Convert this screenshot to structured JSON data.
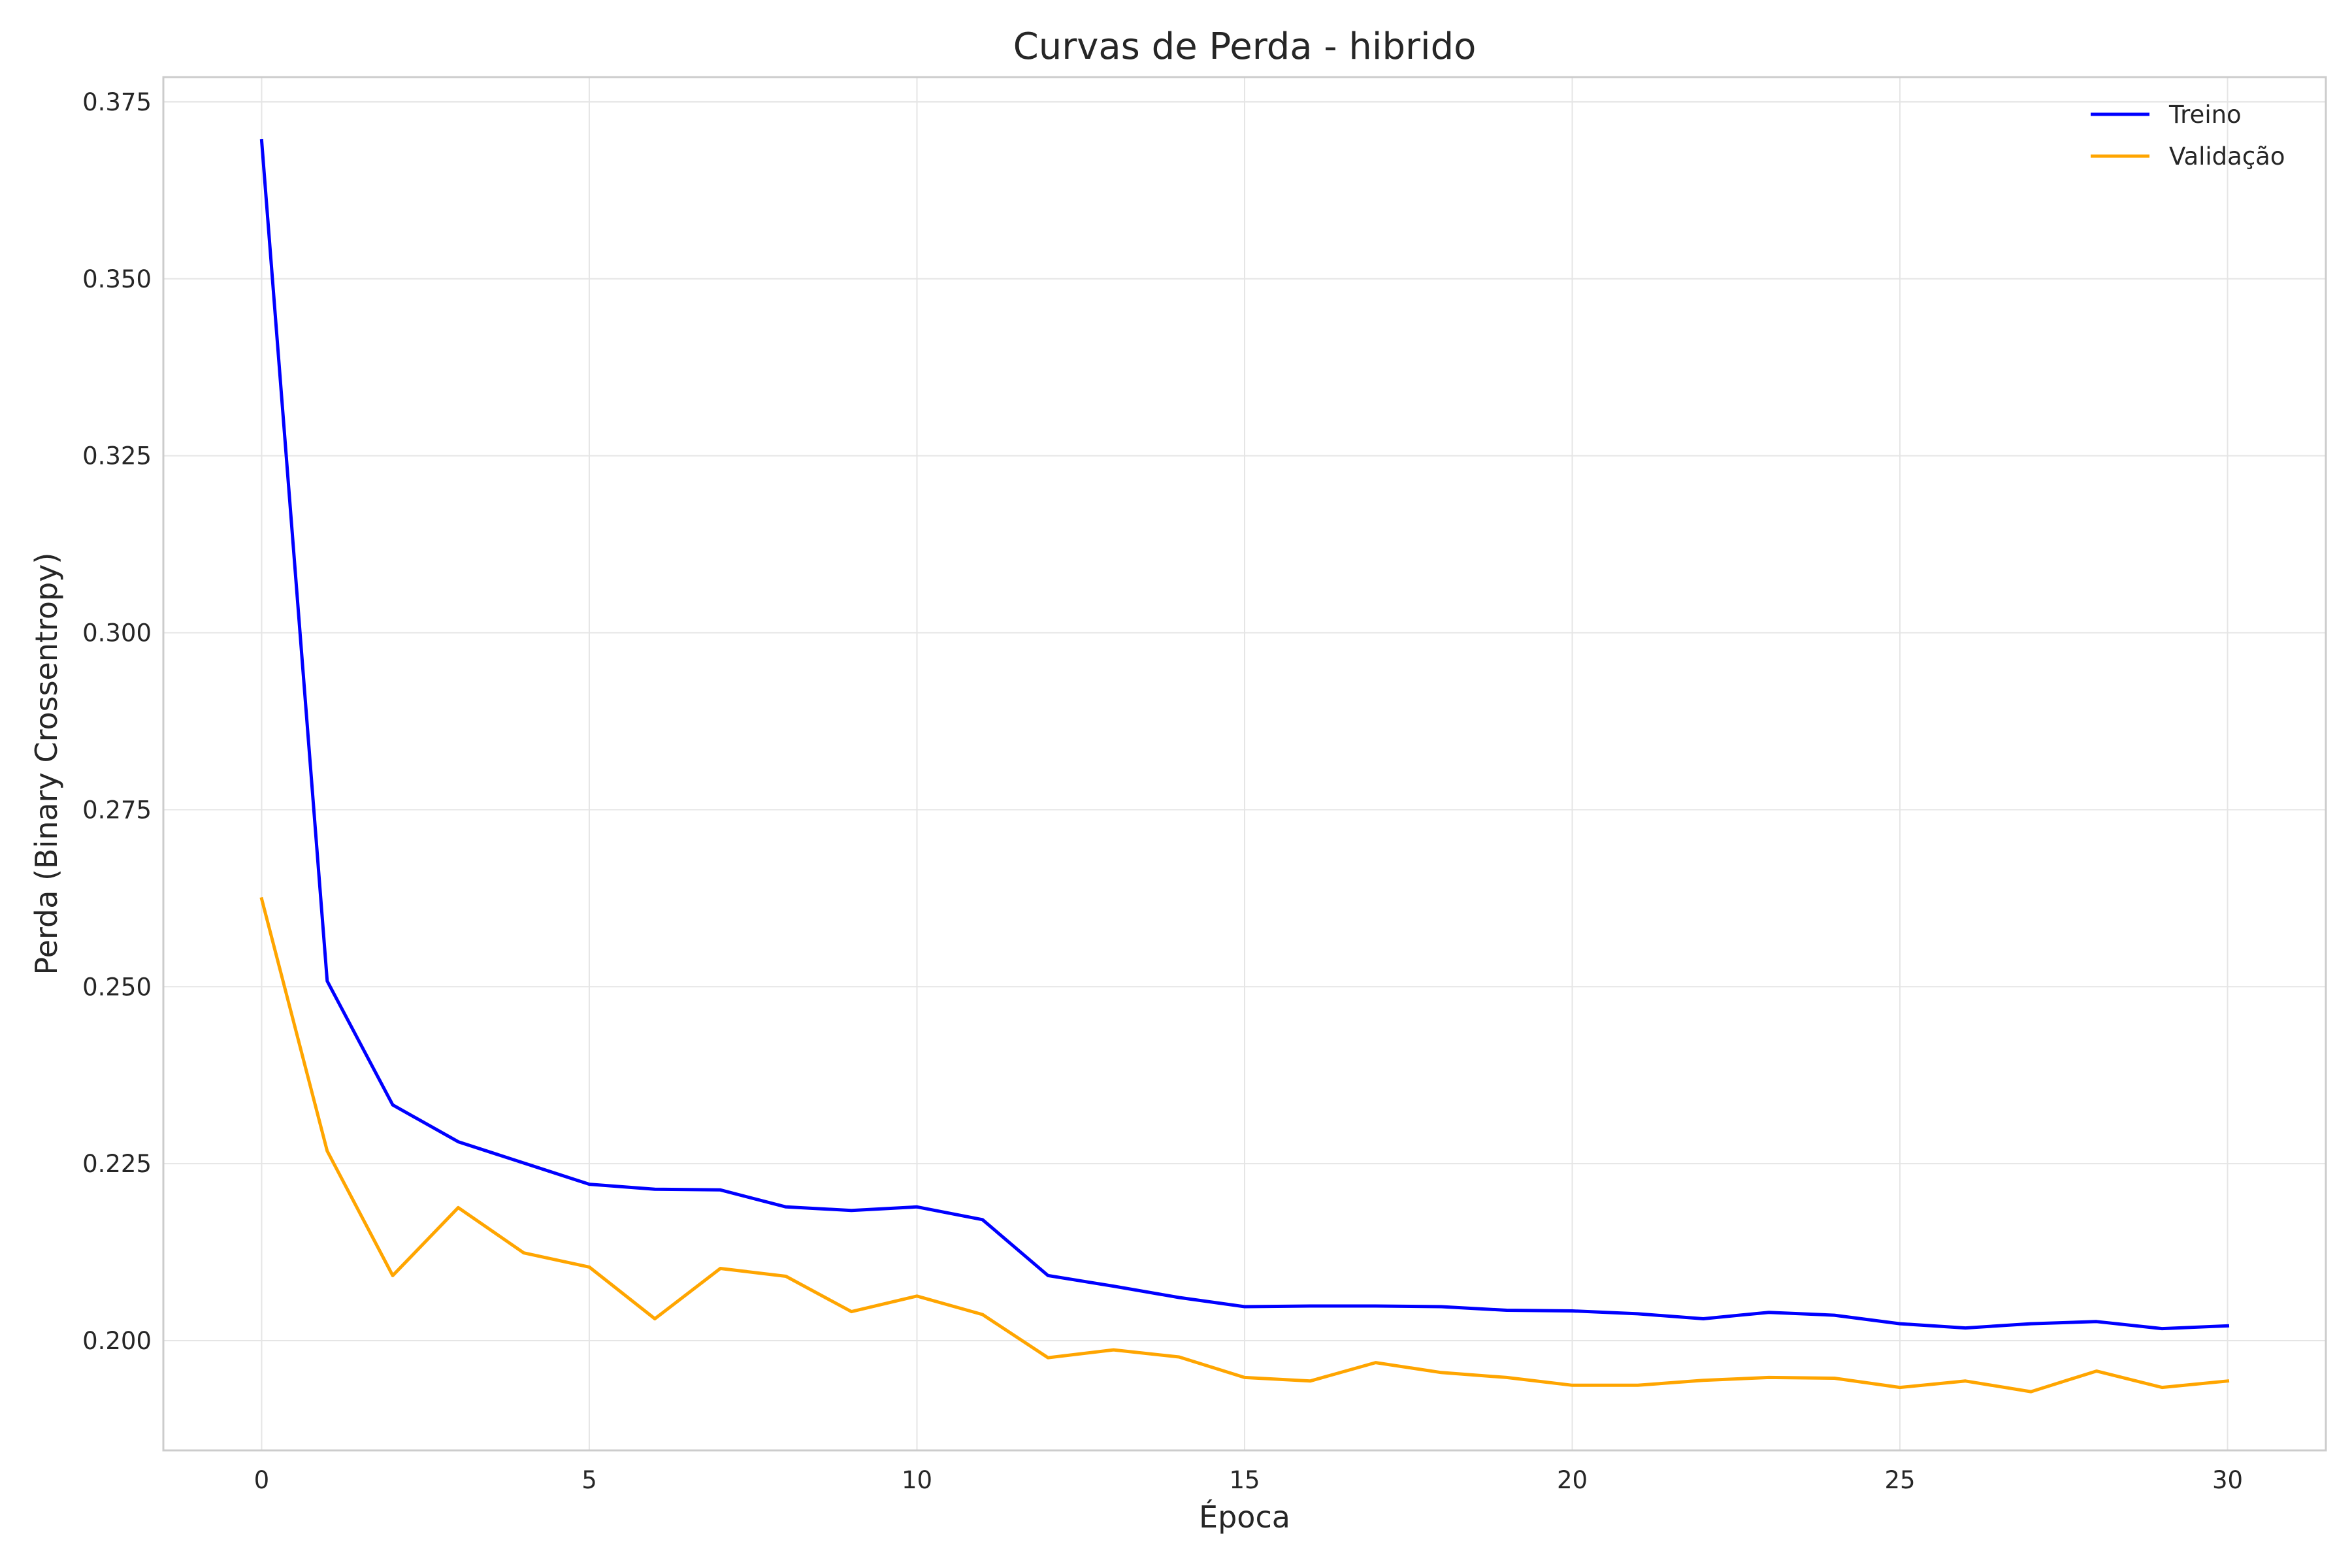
{
  "chart_data": {
    "type": "line",
    "title": "Curvas de Perda - hibrido",
    "xlabel": "Época",
    "ylabel": "Perda (Binary Crossentropy)",
    "xlim": [
      -1.5,
      31.5
    ],
    "ylim": [
      0.1845,
      0.3785
    ],
    "x_ticks": [
      0,
      5,
      10,
      15,
      20,
      25,
      30
    ],
    "x_tick_labels": [
      "0",
      "5",
      "10",
      "15",
      "20",
      "25",
      "30"
    ],
    "y_ticks": [
      0.2,
      0.225,
      0.25,
      0.275,
      0.3,
      0.325,
      0.35,
      0.375
    ],
    "y_tick_labels": [
      "0.200",
      "0.225",
      "0.250",
      "0.275",
      "0.300",
      "0.325",
      "0.350",
      "0.375"
    ],
    "grid": true,
    "legend_position": "top-right",
    "x": [
      0,
      1,
      2,
      3,
      4,
      5,
      6,
      7,
      8,
      9,
      10,
      11,
      12,
      13,
      14,
      15,
      16,
      17,
      18,
      19,
      20,
      21,
      22,
      23,
      24,
      25,
      26,
      27,
      28,
      29,
      30
    ],
    "series": [
      {
        "name": "Treino",
        "color": "#0000ff",
        "values": [
          0.3695,
          0.2508,
          0.2333,
          0.2281,
          0.2251,
          0.2221,
          0.2214,
          0.2213,
          0.2189,
          0.2184,
          0.2189,
          0.2171,
          0.2092,
          0.2077,
          0.2061,
          0.2048,
          0.2049,
          0.2049,
          0.2048,
          0.2043,
          0.2042,
          0.2038,
          0.2031,
          0.204,
          0.2036,
          0.2024,
          0.2018,
          0.2024,
          0.2027,
          0.2017,
          0.2021
        ]
      },
      {
        "name": "Validação",
        "color": "#ffa500",
        "values": [
          0.2624,
          0.2268,
          0.2092,
          0.2188,
          0.2124,
          0.2104,
          0.2031,
          0.2102,
          0.2091,
          0.2041,
          0.2063,
          0.2037,
          0.1976,
          0.1987,
          0.1977,
          0.1948,
          0.1943,
          0.1969,
          0.1955,
          0.1948,
          0.1937,
          0.1937,
          0.1944,
          0.1948,
          0.1947,
          0.1934,
          0.1943,
          0.1928,
          0.1957,
          0.1934,
          0.1943
        ]
      }
    ]
  }
}
